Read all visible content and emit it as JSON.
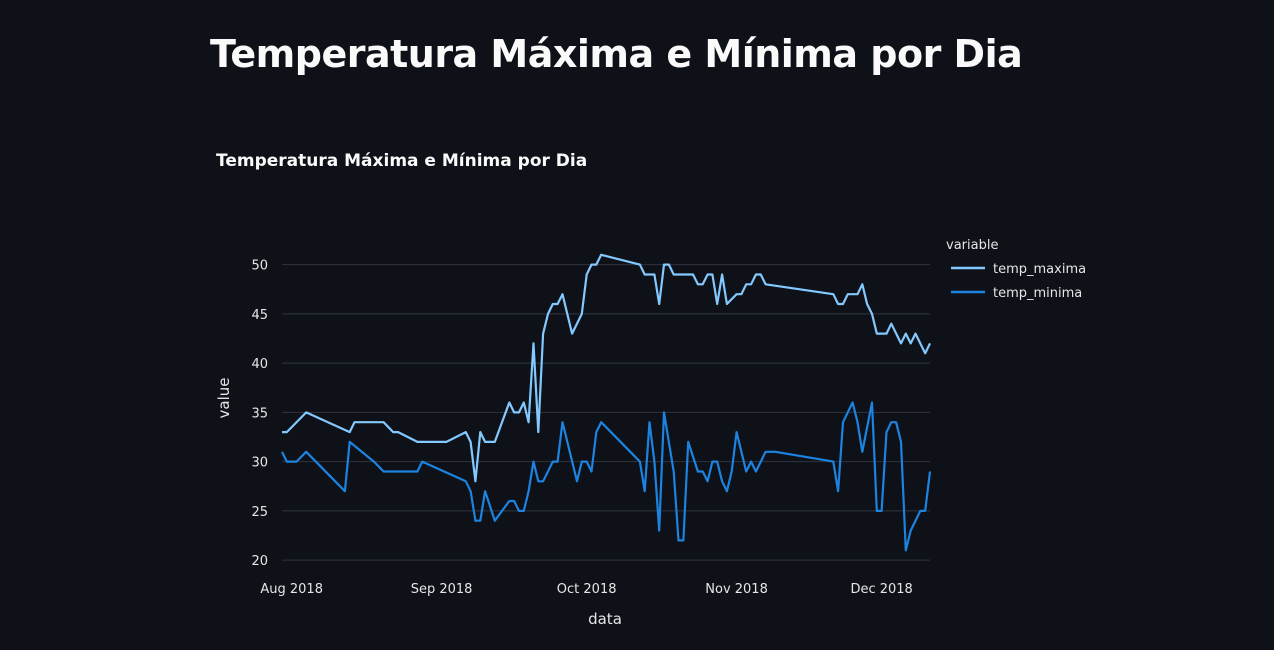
{
  "page": {
    "title": "Temperatura Máxima e Mínima por Dia"
  },
  "chart_data": {
    "type": "line",
    "title": "Temperatura Máxima e Mínima por Dia",
    "xlabel": "data",
    "ylabel": "value",
    "ylim": [
      19,
      52.5
    ],
    "xlim": [
      "2018-07-30",
      "2018-12-11"
    ],
    "yticks": [
      20,
      25,
      30,
      35,
      40,
      45,
      50
    ],
    "xticks": [
      {
        "date": "2018-08-01",
        "label": "Aug 2018"
      },
      {
        "date": "2018-09-01",
        "label": "Sep 2018"
      },
      {
        "date": "2018-10-01",
        "label": "Oct 2018"
      },
      {
        "date": "2018-11-01",
        "label": "Nov 2018"
      },
      {
        "date": "2018-12-01",
        "label": "Dec 2018"
      }
    ],
    "grid": true,
    "legend": {
      "title": "variable",
      "placement": "top-right"
    },
    "series": [
      {
        "name": "temp_maxima",
        "color": "#83c9ff",
        "points": [
          [
            "2018-07-30",
            33
          ],
          [
            "2018-07-31",
            33
          ],
          [
            "2018-08-04",
            35
          ],
          [
            "2018-08-13",
            33
          ],
          [
            "2018-08-14",
            34
          ],
          [
            "2018-08-20",
            34
          ],
          [
            "2018-08-22",
            33
          ],
          [
            "2018-08-23",
            33
          ],
          [
            "2018-08-27",
            32
          ],
          [
            "2018-09-02",
            32
          ],
          [
            "2018-09-06",
            33
          ],
          [
            "2018-09-07",
            32
          ],
          [
            "2018-09-08",
            28
          ],
          [
            "2018-09-09",
            33
          ],
          [
            "2018-09-10",
            32
          ],
          [
            "2018-09-12",
            32
          ],
          [
            "2018-09-15",
            36
          ],
          [
            "2018-09-16",
            35
          ],
          [
            "2018-09-17",
            35
          ],
          [
            "2018-09-18",
            36
          ],
          [
            "2018-09-19",
            34
          ],
          [
            "2018-09-20",
            42
          ],
          [
            "2018-09-21",
            33
          ],
          [
            "2018-09-22",
            43
          ],
          [
            "2018-09-23",
            45
          ],
          [
            "2018-09-24",
            46
          ],
          [
            "2018-09-25",
            46
          ],
          [
            "2018-09-26",
            47
          ],
          [
            "2018-09-28",
            43
          ],
          [
            "2018-09-30",
            45
          ],
          [
            "2018-10-01",
            49
          ],
          [
            "2018-10-02",
            50
          ],
          [
            "2018-10-03",
            50
          ],
          [
            "2018-10-04",
            51
          ],
          [
            "2018-10-12",
            50
          ],
          [
            "2018-10-13",
            49
          ],
          [
            "2018-10-15",
            49
          ],
          [
            "2018-10-16",
            46
          ],
          [
            "2018-10-17",
            50
          ],
          [
            "2018-10-18",
            50
          ],
          [
            "2018-10-19",
            49
          ],
          [
            "2018-10-23",
            49
          ],
          [
            "2018-10-24",
            48
          ],
          [
            "2018-10-25",
            48
          ],
          [
            "2018-10-26",
            49
          ],
          [
            "2018-10-27",
            49
          ],
          [
            "2018-10-28",
            46
          ],
          [
            "2018-10-29",
            49
          ],
          [
            "2018-10-30",
            46
          ],
          [
            "2018-11-01",
            47
          ],
          [
            "2018-11-02",
            47
          ],
          [
            "2018-11-03",
            48
          ],
          [
            "2018-11-04",
            48
          ],
          [
            "2018-11-05",
            49
          ],
          [
            "2018-11-06",
            49
          ],
          [
            "2018-11-07",
            48
          ],
          [
            "2018-11-21",
            47
          ],
          [
            "2018-11-22",
            46
          ],
          [
            "2018-11-23",
            46
          ],
          [
            "2018-11-24",
            47
          ],
          [
            "2018-11-26",
            47
          ],
          [
            "2018-11-27",
            48
          ],
          [
            "2018-11-28",
            46
          ],
          [
            "2018-11-29",
            45
          ],
          [
            "2018-11-30",
            43
          ],
          [
            "2018-12-02",
            43
          ],
          [
            "2018-12-03",
            44
          ],
          [
            "2018-12-05",
            42
          ],
          [
            "2018-12-06",
            43
          ],
          [
            "2018-12-07",
            42
          ],
          [
            "2018-12-08",
            43
          ],
          [
            "2018-12-10",
            41
          ],
          [
            "2018-12-11",
            42
          ]
        ]
      },
      {
        "name": "temp_minima",
        "color": "#1c83e1",
        "points": [
          [
            "2018-07-30",
            31
          ],
          [
            "2018-07-31",
            30
          ],
          [
            "2018-08-02",
            30
          ],
          [
            "2018-08-04",
            31
          ],
          [
            "2018-08-12",
            27
          ],
          [
            "2018-08-13",
            32
          ],
          [
            "2018-08-18",
            30
          ],
          [
            "2018-08-20",
            29
          ],
          [
            "2018-08-27",
            29
          ],
          [
            "2018-08-28",
            30
          ],
          [
            "2018-09-06",
            28
          ],
          [
            "2018-09-07",
            27
          ],
          [
            "2018-09-08",
            24
          ],
          [
            "2018-09-09",
            24
          ],
          [
            "2018-09-10",
            27
          ],
          [
            "2018-09-12",
            24
          ],
          [
            "2018-09-15",
            26
          ],
          [
            "2018-09-16",
            26
          ],
          [
            "2018-09-17",
            25
          ],
          [
            "2018-09-18",
            25
          ],
          [
            "2018-09-19",
            27
          ],
          [
            "2018-09-20",
            30
          ],
          [
            "2018-09-21",
            28
          ],
          [
            "2018-09-22",
            28
          ],
          [
            "2018-09-24",
            30
          ],
          [
            "2018-09-25",
            30
          ],
          [
            "2018-09-26",
            34
          ],
          [
            "2018-09-29",
            28
          ],
          [
            "2018-09-30",
            30
          ],
          [
            "2018-10-01",
            30
          ],
          [
            "2018-10-02",
            29
          ],
          [
            "2018-10-03",
            33
          ],
          [
            "2018-10-04",
            34
          ],
          [
            "2018-10-12",
            30
          ],
          [
            "2018-10-13",
            27
          ],
          [
            "2018-10-14",
            34
          ],
          [
            "2018-10-15",
            30
          ],
          [
            "2018-10-16",
            23
          ],
          [
            "2018-10-17",
            35
          ],
          [
            "2018-10-19",
            29
          ],
          [
            "2018-10-20",
            22
          ],
          [
            "2018-10-21",
            22
          ],
          [
            "2018-10-22",
            32
          ],
          [
            "2018-10-24",
            29
          ],
          [
            "2018-10-25",
            29
          ],
          [
            "2018-10-26",
            28
          ],
          [
            "2018-10-27",
            30
          ],
          [
            "2018-10-28",
            30
          ],
          [
            "2018-10-29",
            28
          ],
          [
            "2018-10-30",
            27
          ],
          [
            "2018-10-31",
            29
          ],
          [
            "2018-11-01",
            33
          ],
          [
            "2018-11-03",
            29
          ],
          [
            "2018-11-04",
            30
          ],
          [
            "2018-11-05",
            29
          ],
          [
            "2018-11-07",
            31
          ],
          [
            "2018-11-09",
            31
          ],
          [
            "2018-11-21",
            30
          ],
          [
            "2018-11-22",
            27
          ],
          [
            "2018-11-23",
            34
          ],
          [
            "2018-11-25",
            36
          ],
          [
            "2018-11-26",
            34
          ],
          [
            "2018-11-27",
            31
          ],
          [
            "2018-11-29",
            36
          ],
          [
            "2018-11-30",
            25
          ],
          [
            "2018-12-01",
            25
          ],
          [
            "2018-12-02",
            33
          ],
          [
            "2018-12-03",
            34
          ],
          [
            "2018-12-04",
            34
          ],
          [
            "2018-12-05",
            32
          ],
          [
            "2018-12-06",
            21
          ],
          [
            "2018-12-07",
            23
          ],
          [
            "2018-12-09",
            25
          ],
          [
            "2018-12-10",
            25
          ],
          [
            "2018-12-11",
            29
          ]
        ]
      }
    ]
  }
}
